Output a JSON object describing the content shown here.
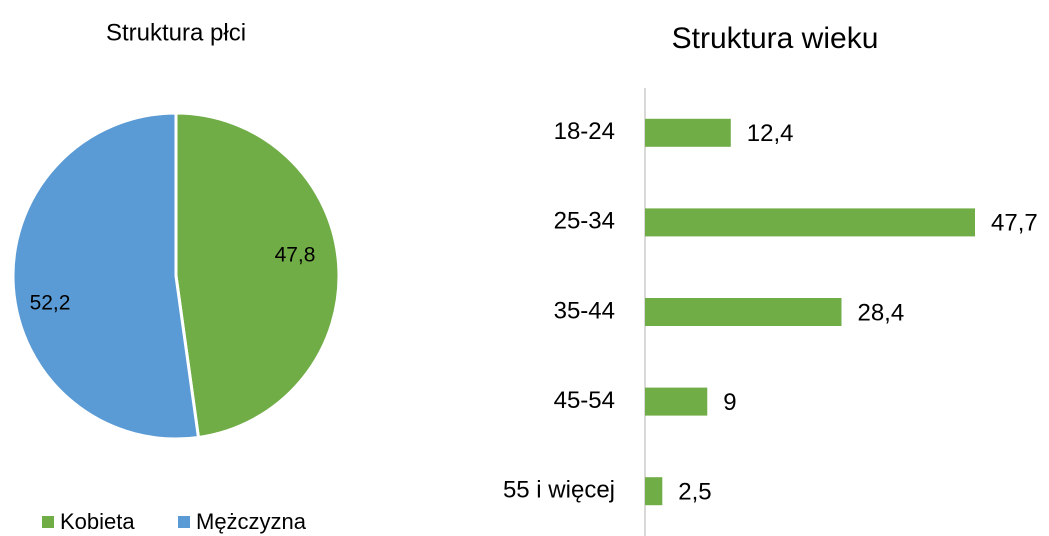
{
  "chart_data": [
    {
      "type": "pie",
      "title": "Struktura płci",
      "categories": [
        "Kobieta",
        "Mężczyzna"
      ],
      "values": [
        47.8,
        52.2
      ],
      "value_labels": [
        "47,8",
        "52,2"
      ],
      "colors": [
        "#70ad47",
        "#5b9bd5"
      ],
      "legend": "bottom"
    },
    {
      "type": "bar",
      "orientation": "horizontal",
      "title": "Struktura wieku",
      "categories": [
        "18-24",
        "25-34",
        "35-44",
        "45-54",
        "55 i więcej"
      ],
      "values": [
        12.4,
        47.7,
        28.4,
        9,
        2.5
      ],
      "value_labels": [
        "12,4",
        "47,7",
        "28,4",
        "9",
        "2,5"
      ],
      "color": "#70ad47"
    }
  ]
}
